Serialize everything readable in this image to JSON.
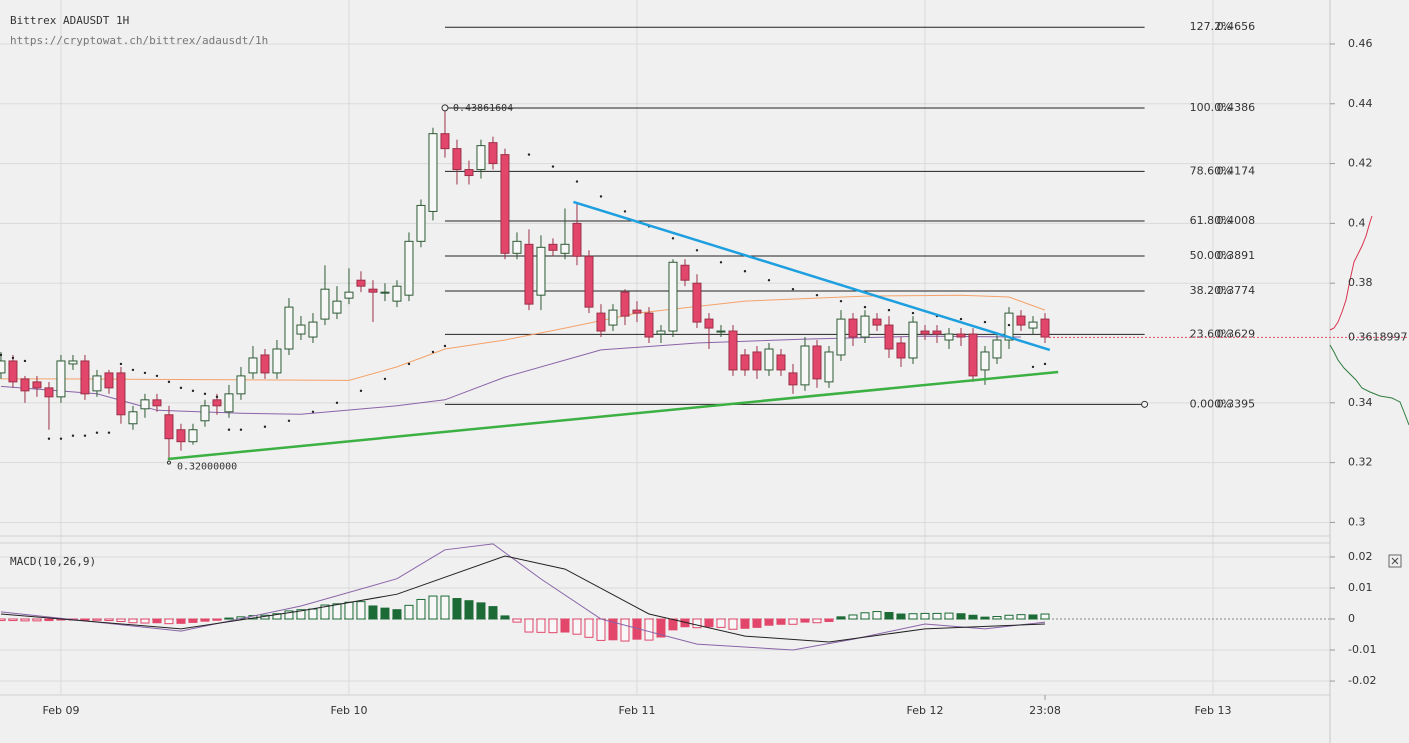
{
  "header": {
    "title": "Bittrex ADAUSDT 1H",
    "url": "https://cryptowat.ch/bittrex/adausdt/1h"
  },
  "chart_data": [
    {
      "type": "candlestick",
      "xlim": [
        -0.08,
        110.75
      ],
      "xticks": [
        {
          "value": 5,
          "label": "Feb 09"
        },
        {
          "value": 29,
          "label": "Feb 10"
        },
        {
          "value": 53,
          "label": "Feb 11"
        },
        {
          "value": 77,
          "label": "Feb 12"
        },
        {
          "value": 101,
          "label": "Feb 13"
        }
      ],
      "cursor_tick": {
        "value": 87,
        "label": "23:08"
      },
      "ylim": [
        0.2958,
        0.4747
      ],
      "yticks": [
        0.3,
        0.32,
        0.34,
        0.38,
        0.4,
        0.42,
        0.44,
        0.46
      ],
      "grid": true,
      "up_color": "#2d5a34",
      "down_color": "#e2476b",
      "candles": {
        "open": [
          0.35,
          0.354,
          0.348,
          0.347,
          0.345,
          0.342,
          0.353,
          0.354,
          0.344,
          0.35,
          0.35,
          0.333,
          0.338,
          0.341,
          0.336,
          0.331,
          0.327,
          0.334,
          0.341,
          0.337,
          0.343,
          0.35,
          0.356,
          0.35,
          0.358,
          0.363,
          0.362,
          0.368,
          0.37,
          0.375,
          0.381,
          0.378,
          0.377,
          0.374,
          0.376,
          0.394,
          0.404,
          0.43,
          0.425,
          0.418,
          0.418,
          0.427,
          0.423,
          0.39,
          0.393,
          0.376,
          0.393,
          0.39,
          0.4,
          0.389,
          0.37,
          0.366,
          0.377,
          0.371,
          0.37,
          0.363,
          0.364,
          0.386,
          0.38,
          0.368,
          0.364,
          0.364,
          0.356,
          0.357,
          0.351,
          0.356,
          0.35,
          0.346,
          0.359,
          0.347,
          0.356,
          0.368,
          0.362,
          0.368,
          0.366,
          0.36,
          0.355,
          0.364,
          0.364,
          0.361,
          0.363,
          0.363,
          0.351,
          0.355,
          0.361,
          0.369,
          0.365,
          0.368
        ],
        "high": [
          0.357,
          0.356,
          0.349,
          0.349,
          0.347,
          0.356,
          0.356,
          0.356,
          0.351,
          0.351,
          0.352,
          0.339,
          0.343,
          0.343,
          0.339,
          0.333,
          0.333,
          0.341,
          0.343,
          0.346,
          0.352,
          0.359,
          0.358,
          0.361,
          0.375,
          0.369,
          0.37,
          0.386,
          0.379,
          0.385,
          0.384,
          0.381,
          0.38,
          0.381,
          0.397,
          0.408,
          0.432,
          0.4386,
          0.428,
          0.421,
          0.428,
          0.429,
          0.425,
          0.397,
          0.398,
          0.396,
          0.395,
          0.405,
          0.407,
          0.391,
          0.373,
          0.373,
          0.378,
          0.374,
          0.372,
          0.366,
          0.388,
          0.388,
          0.383,
          0.37,
          0.366,
          0.366,
          0.358,
          0.359,
          0.36,
          0.358,
          0.353,
          0.362,
          0.361,
          0.359,
          0.371,
          0.37,
          0.371,
          0.37,
          0.369,
          0.362,
          0.369,
          0.366,
          0.366,
          0.365,
          0.365,
          0.365,
          0.359,
          0.363,
          0.372,
          0.371,
          0.369,
          0.37
        ],
        "low": [
          0.348,
          0.345,
          0.34,
          0.342,
          0.331,
          0.34,
          0.351,
          0.341,
          0.342,
          0.343,
          0.333,
          0.331,
          0.335,
          0.337,
          0.321,
          0.324,
          0.326,
          0.332,
          0.336,
          0.335,
          0.341,
          0.348,
          0.348,
          0.348,
          0.356,
          0.361,
          0.36,
          0.366,
          0.368,
          0.373,
          0.377,
          0.367,
          0.374,
          0.372,
          0.374,
          0.392,
          0.401,
          0.422,
          0.413,
          0.413,
          0.415,
          0.418,
          0.388,
          0.388,
          0.371,
          0.371,
          0.389,
          0.388,
          0.386,
          0.37,
          0.362,
          0.364,
          0.366,
          0.367,
          0.36,
          0.36,
          0.362,
          0.379,
          0.365,
          0.358,
          0.362,
          0.349,
          0.349,
          0.348,
          0.349,
          0.349,
          0.343,
          0.344,
          0.345,
          0.345,
          0.354,
          0.359,
          0.36,
          0.364,
          0.355,
          0.352,
          0.353,
          0.361,
          0.36,
          0.358,
          0.359,
          0.347,
          0.346,
          0.353,
          0.358,
          0.364,
          0.363,
          0.36
        ],
        "close": [
          0.354,
          0.347,
          0.344,
          0.345,
          0.342,
          0.354,
          0.354,
          0.343,
          0.349,
          0.345,
          0.336,
          0.337,
          0.341,
          0.339,
          0.328,
          0.327,
          0.331,
          0.339,
          0.339,
          0.343,
          0.349,
          0.355,
          0.35,
          0.358,
          0.372,
          0.366,
          0.367,
          0.378,
          0.374,
          0.377,
          0.379,
          0.377,
          0.377,
          0.379,
          0.394,
          0.406,
          0.43,
          0.425,
          0.418,
          0.416,
          0.426,
          0.42,
          0.39,
          0.394,
          0.373,
          0.392,
          0.391,
          0.393,
          0.389,
          0.372,
          0.364,
          0.371,
          0.369,
          0.37,
          0.362,
          0.364,
          0.387,
          0.381,
          0.367,
          0.365,
          0.364,
          0.351,
          0.351,
          0.351,
          0.358,
          0.351,
          0.346,
          0.359,
          0.348,
          0.357,
          0.368,
          0.362,
          0.369,
          0.366,
          0.358,
          0.355,
          0.367,
          0.363,
          0.363,
          0.363,
          0.362,
          0.349,
          0.357,
          0.361,
          0.37,
          0.366,
          0.367,
          0.362
        ]
      },
      "lines": [
        {
          "color": "#f4a26a",
          "x": [
            0,
            5,
            29,
            33,
            37,
            42,
            47,
            53,
            62,
            72,
            80,
            84,
            87
          ],
          "values": [
            0.348,
            0.348,
            0.3475,
            0.352,
            0.358,
            0.361,
            0.365,
            0.37,
            0.374,
            0.3757,
            0.376,
            0.3754,
            0.371
          ]
        },
        {
          "color": "#8a63a8",
          "x": [
            0,
            8,
            13,
            20,
            25,
            33,
            37,
            42,
            50,
            58,
            67,
            77,
            85
          ],
          "values": [
            0.3455,
            0.343,
            0.3375,
            0.3365,
            0.3362,
            0.339,
            0.341,
            0.3486,
            0.3577,
            0.36,
            0.3613,
            0.3623,
            0.362
          ]
        }
      ],
      "sar": {
        "color": "#222222",
        "x": [
          0,
          1,
          2,
          4,
          5,
          6,
          7,
          8,
          9,
          10,
          11,
          12,
          13,
          14,
          15,
          16,
          17,
          18,
          19,
          20,
          22,
          24,
          26,
          28,
          30,
          32,
          34,
          36,
          37,
          44,
          46,
          48,
          50,
          52,
          54,
          56,
          58,
          60,
          62,
          64,
          66,
          68,
          70,
          72,
          74,
          76,
          78,
          80,
          82,
          84,
          86,
          87
        ],
        "values": [
          0.356,
          0.355,
          0.354,
          0.328,
          0.328,
          0.329,
          0.329,
          0.33,
          0.33,
          0.353,
          0.351,
          0.35,
          0.349,
          0.347,
          0.345,
          0.344,
          0.343,
          0.342,
          0.331,
          0.331,
          0.332,
          0.334,
          0.337,
          0.34,
          0.344,
          0.348,
          0.353,
          0.357,
          0.359,
          0.423,
          0.419,
          0.414,
          0.409,
          0.404,
          0.399,
          0.395,
          0.391,
          0.387,
          0.384,
          0.381,
          0.378,
          0.376,
          0.374,
          0.372,
          0.371,
          0.37,
          0.369,
          0.368,
          0.367,
          0.366,
          0.352,
          0.353
        ]
      },
      "trendlines": [
        {
          "color": "#1e9fe0",
          "x": [
            47.7,
            87.4
          ],
          "values": [
            0.4072,
            0.3577
          ]
        },
        {
          "color": "#3cb043",
          "x": [
            13.9,
            88.1
          ],
          "values": [
            0.3212,
            0.3503
          ]
        }
      ],
      "fib": {
        "x": [
          37,
          95.3
        ],
        "levels": [
          {
            "label": "127.2%",
            "value": 0.4656
          },
          {
            "label": "100.0%",
            "value": 0.4386
          },
          {
            "label": "78.60%",
            "value": 0.4174
          },
          {
            "label": "61.80%",
            "value": 0.4008
          },
          {
            "label": "50.00%",
            "value": 0.3891
          },
          {
            "label": "38.20%",
            "value": 0.3774
          },
          {
            "label": "23.60%",
            "value": 0.3629
          },
          {
            "label": "0.000%",
            "value": 0.3395
          }
        ]
      },
      "annotations": [
        {
          "text": "0.43861604",
          "x": 37,
          "value": 0.43861604
        },
        {
          "text": "0.32000000",
          "x": 14,
          "value": 0.32
        }
      ],
      "last_price": {
        "value": 0.3618997,
        "color": "#e2476b"
      }
    },
    {
      "type": "macd",
      "title": "MACD(10,26,9)",
      "ylim": [
        -0.0245,
        0.0245
      ],
      "yticks": [
        0.02,
        0.01,
        0,
        -0.01,
        -0.02
      ],
      "histogram": {
        "up_color": "#1c6b36",
        "down_color": "#e2476b",
        "values": [
          -0.0005,
          -0.0005,
          -0.0006,
          -0.0006,
          -0.0005,
          -0.0003,
          -0.0002,
          -0.0003,
          -0.0004,
          -0.0005,
          -0.0008,
          -0.0012,
          -0.0013,
          -0.0012,
          -0.0015,
          -0.0014,
          -0.0011,
          -0.0007,
          -0.0004,
          0.0003,
          0.0007,
          0.0011,
          0.0012,
          0.0017,
          0.0026,
          0.003,
          0.0032,
          0.0045,
          0.0049,
          0.0054,
          0.0056,
          0.0042,
          0.0035,
          0.003,
          0.0044,
          0.0063,
          0.0074,
          0.0074,
          0.0066,
          0.0059,
          0.0052,
          0.004,
          0.001,
          -0.001,
          -0.0042,
          -0.0043,
          -0.0044,
          -0.0042,
          -0.0049,
          -0.0059,
          -0.0069,
          -0.0067,
          -0.0071,
          -0.0065,
          -0.0068,
          -0.0058,
          -0.0035,
          -0.0025,
          -0.0028,
          -0.0025,
          -0.0027,
          -0.0033,
          -0.003,
          -0.0027,
          -0.002,
          -0.0017,
          -0.0017,
          -0.001,
          -0.0012,
          -0.0008,
          0.0007,
          0.0013,
          0.002,
          0.0024,
          0.0021,
          0.0016,
          0.0017,
          0.0018,
          0.0018,
          0.0019,
          0.0017,
          0.0012,
          0.0006,
          0.0008,
          0.0012,
          0.0014,
          0.0013,
          0.0016
        ]
      },
      "macd": {
        "color": "#8a63a8",
        "x": [
          0,
          15,
          25,
          33,
          37,
          41,
          45,
          50,
          58,
          66,
          71,
          77,
          82,
          87
        ],
        "values": [
          0.0023,
          -0.0039,
          0.0042,
          0.013,
          0.0223,
          0.0242,
          0.0129,
          0,
          -0.0081,
          -0.01,
          -0.0065,
          -0.0016,
          -0.0032,
          -0.001
        ]
      },
      "signal": {
        "color": "#222222",
        "x": [
          0,
          15,
          25,
          33,
          42,
          47,
          54,
          62,
          69,
          77,
          87
        ],
        "values": [
          0.0016,
          -0.0032,
          0.0026,
          0.008,
          0.0203,
          0.0161,
          0.0016,
          -0.0055,
          -0.0074,
          -0.0032,
          -0.0016
        ]
      }
    }
  ]
}
